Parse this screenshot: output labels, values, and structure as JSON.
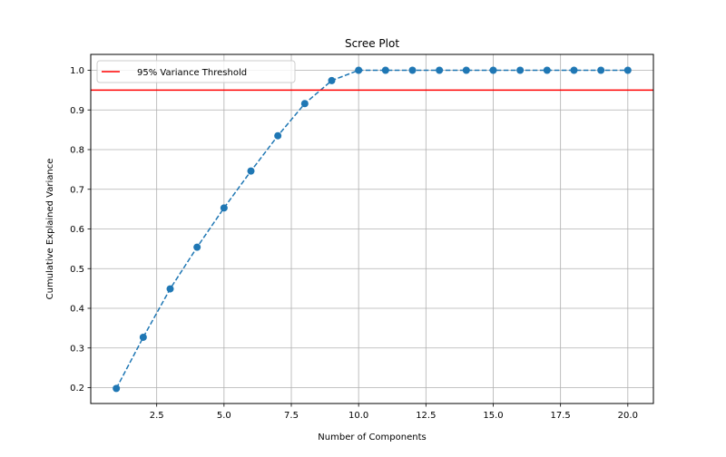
{
  "chart_data": {
    "type": "line",
    "title": "Scree Plot",
    "xlabel": "Number of Components",
    "ylabel": "Cumulative Explained Variance",
    "xlim": [
      0.05,
      20.95
    ],
    "ylim": [
      0.16,
      1.04
    ],
    "grid": true,
    "x_ticks": [
      2.5,
      5.0,
      7.5,
      10.0,
      12.5,
      15.0,
      17.5,
      20.0
    ],
    "x_tick_labels": [
      "2.5",
      "5.0",
      "7.5",
      "10.0",
      "12.5",
      "15.0",
      "17.5",
      "20.0"
    ],
    "y_ticks": [
      0.2,
      0.3,
      0.4,
      0.5,
      0.6,
      0.7,
      0.8,
      0.9,
      1.0
    ],
    "y_tick_labels": [
      "0.2",
      "0.3",
      "0.4",
      "0.5",
      "0.6",
      "0.7",
      "0.8",
      "0.9",
      "1.0"
    ],
    "series": [
      {
        "name": "Cumulative Explained Variance",
        "color": "#1f77b4",
        "style": "dashed-with-markers",
        "x": [
          1,
          2,
          3,
          4,
          5,
          6,
          7,
          8,
          9,
          10,
          11,
          12,
          13,
          14,
          15,
          16,
          17,
          18,
          19,
          20
        ],
        "values": [
          0.198,
          0.327,
          0.449,
          0.554,
          0.653,
          0.746,
          0.835,
          0.916,
          0.974,
          1.0,
          1.0,
          1.0,
          1.0,
          1.0,
          1.0,
          1.0,
          1.0,
          1.0,
          1.0,
          1.0
        ]
      }
    ],
    "threshold": {
      "value": 0.95,
      "label": "95% Variance Threshold",
      "color": "#ff0000"
    },
    "legend_placement": "top-left"
  }
}
